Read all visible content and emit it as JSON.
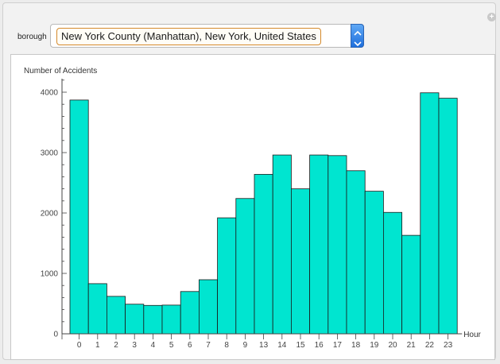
{
  "control": {
    "label": "borough",
    "selected": "New York County (Manhattan), New York, United States"
  },
  "icons": {
    "plus": "plus-icon",
    "stepper": "up-down-stepper-icon"
  },
  "colors": {
    "bar_fill": "#00e5d0",
    "bar_stroke": "#1a1a1a",
    "selection_border": "#d4892c"
  },
  "chart_data": {
    "type": "bar",
    "ylabel": "Number of Accidents",
    "xlabel": "Hour",
    "ylim": [
      0,
      4200
    ],
    "yticks": [
      0,
      1000,
      2000,
      3000,
      4000
    ],
    "categories": [
      "0",
      "1",
      "2",
      "3",
      "4",
      "5",
      "6",
      "7",
      "8",
      "9",
      "13",
      "14",
      "15",
      "16",
      "17",
      "18",
      "19",
      "20",
      "21",
      "22",
      "23"
    ],
    "values": [
      3870,
      830,
      620,
      490,
      470,
      475,
      700,
      895,
      1920,
      2240,
      2640,
      2960,
      2400,
      2960,
      2950,
      2700,
      2360,
      2010,
      1630,
      3990,
      3900
    ],
    "grid": false,
    "legend": "none"
  }
}
